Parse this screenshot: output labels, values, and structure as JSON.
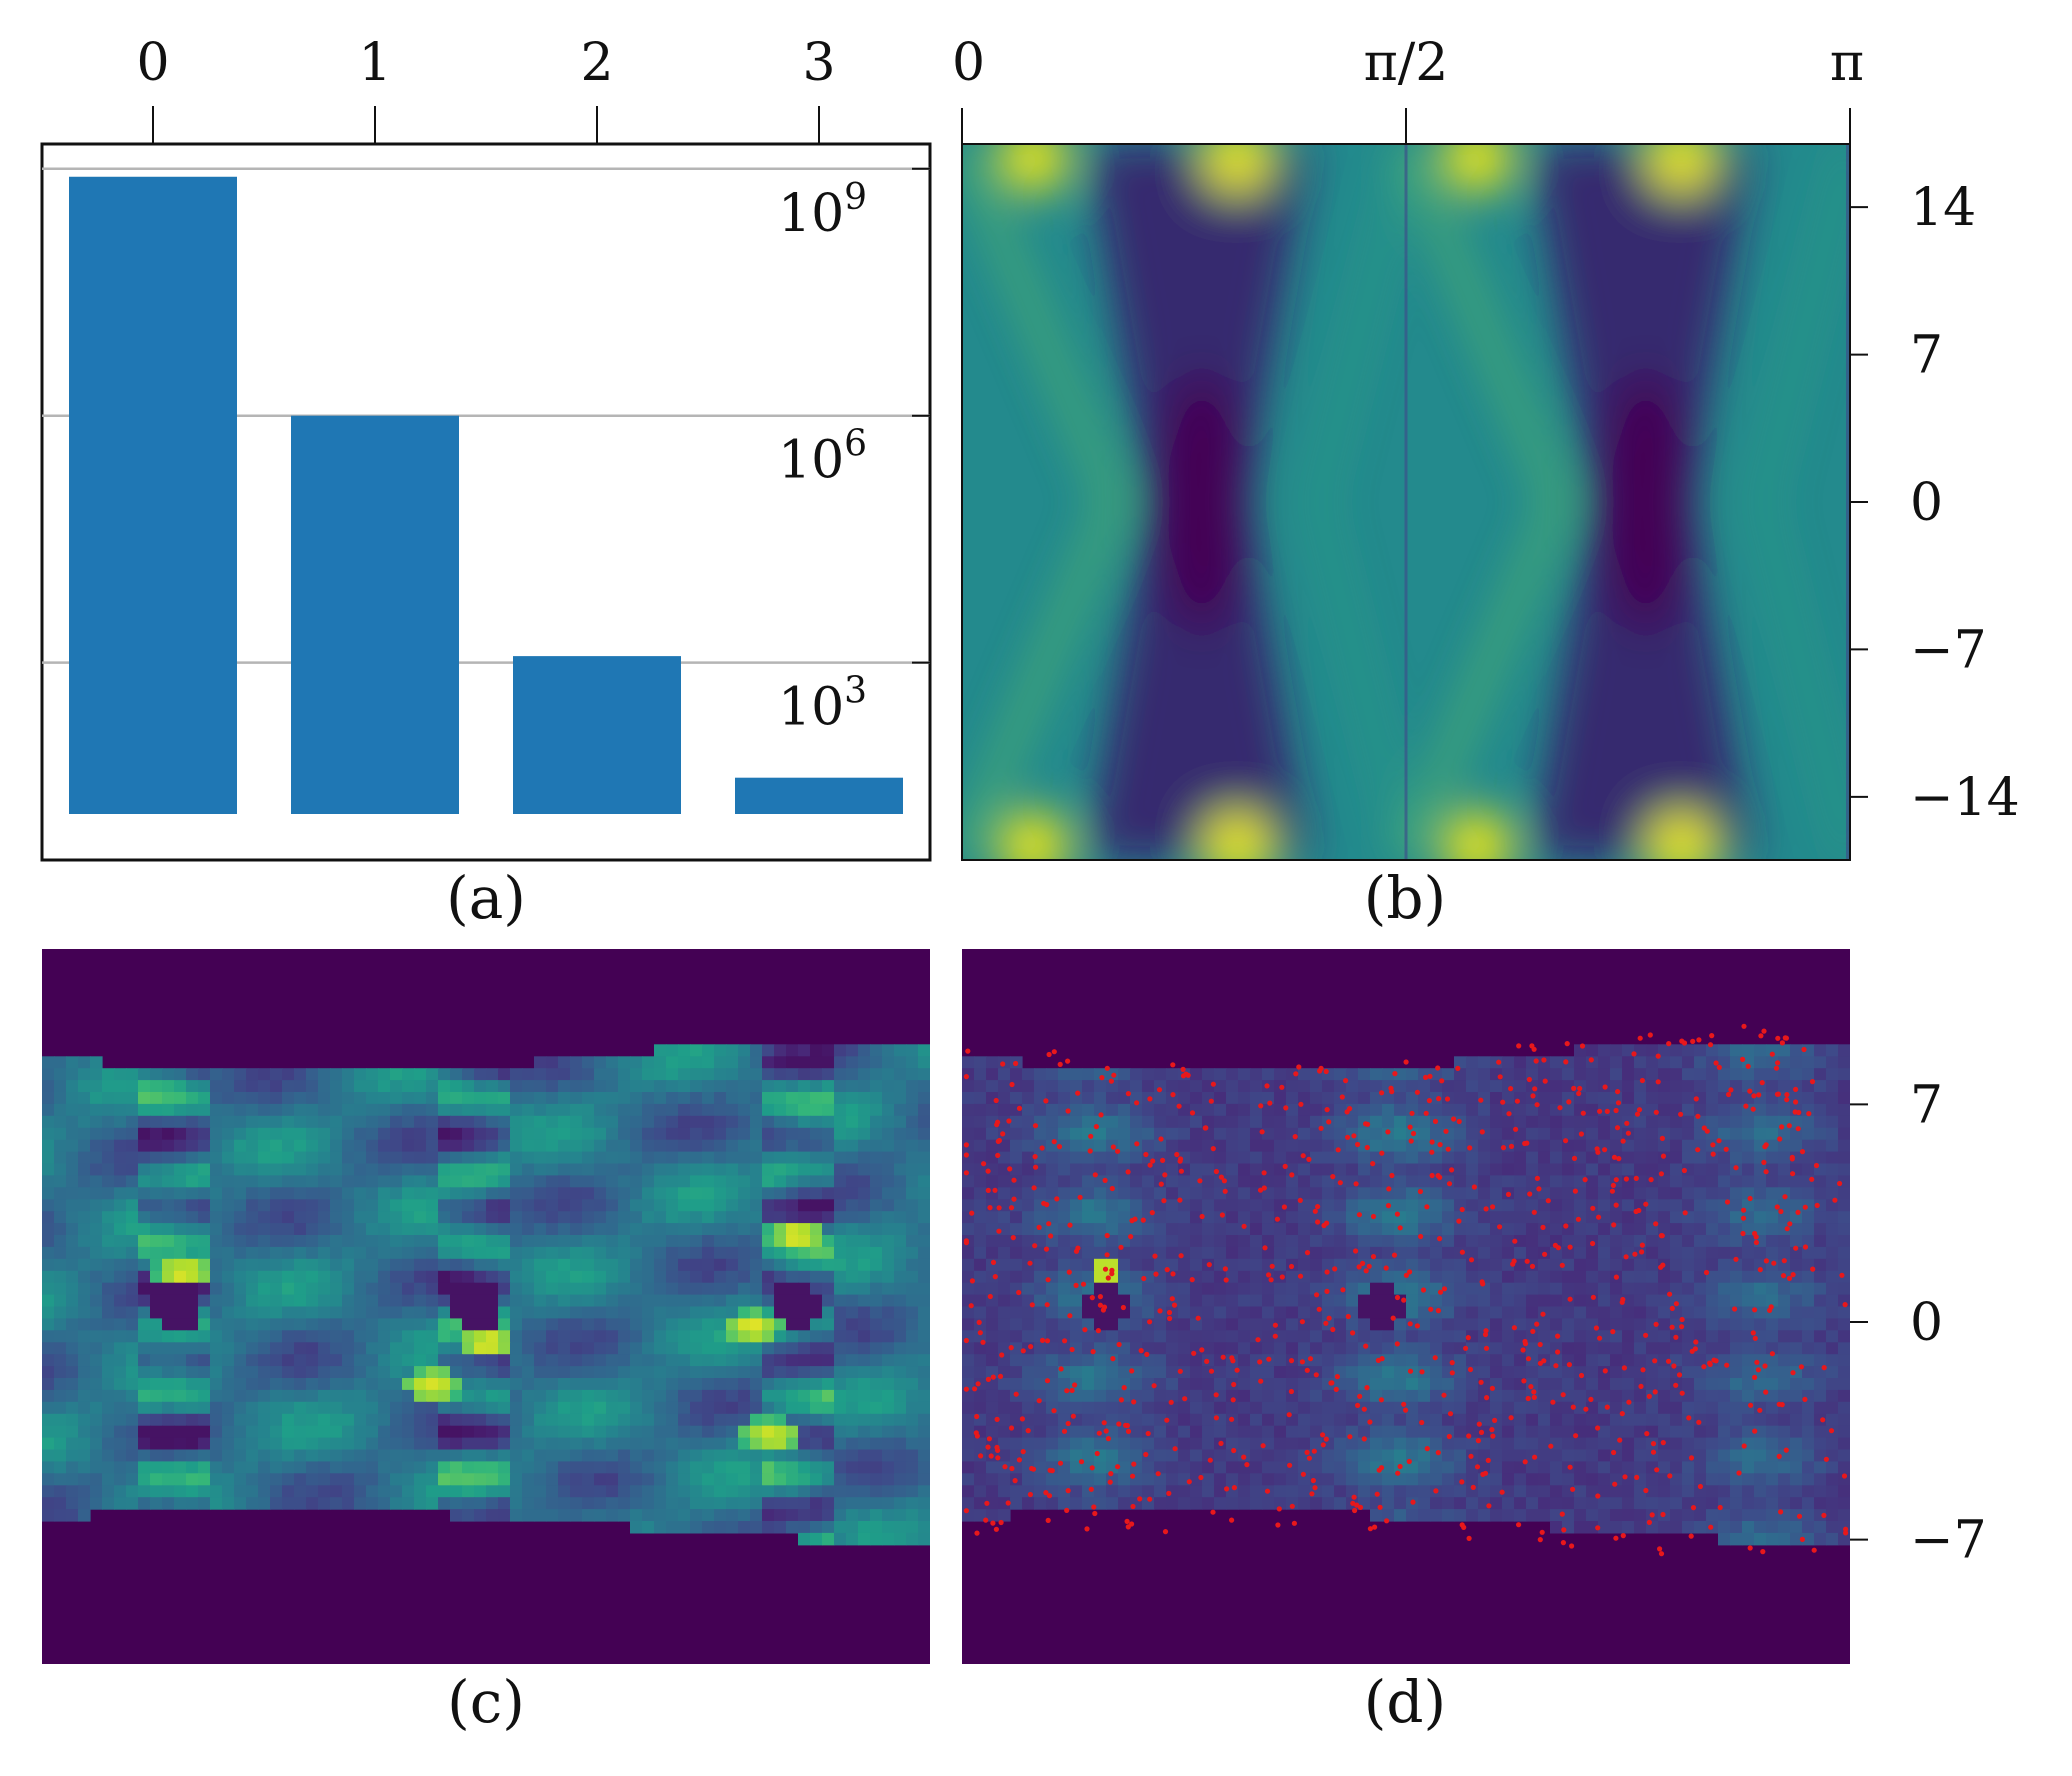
{
  "colors": {
    "bar": "#1f77b4",
    "grid": "#b5b5b5",
    "scatter": "#e8181b",
    "colormap": "viridis"
  },
  "chart_data": [
    {
      "panel": "a",
      "caption": "(a)",
      "type": "bar",
      "categories": [
        "0",
        "1",
        "2",
        "3"
      ],
      "values": [
        800000000,
        1000000,
        1200,
        40
      ],
      "yscale": "log",
      "ylim": [
        4,
        2000000000
      ],
      "yticks": [
        {
          "value": 1000000000,
          "base": "10",
          "exp": "9"
        },
        {
          "value": 1000000,
          "base": "10",
          "exp": "6"
        },
        {
          "value": 1000,
          "base": "10",
          "exp": "3"
        }
      ],
      "xaxis_position": "top",
      "ytick_labels_position": "inside-right",
      "grid": "horizontal",
      "title": "",
      "xlabel": "",
      "ylabel": ""
    },
    {
      "panel": "b",
      "caption": "(b)",
      "type": "heatmap",
      "colormap": "viridis",
      "xticks": [
        "0",
        "π/2",
        "π"
      ],
      "xtick_values": [
        0,
        1.5708,
        3.1416
      ],
      "xlim": [
        0,
        3.1416
      ],
      "yticks": [
        "14",
        "7",
        "0",
        "−7",
        "−14"
      ],
      "ytick_values": [
        14,
        7,
        0,
        -7,
        -14
      ],
      "ylim": [
        -17,
        17
      ],
      "xaxis_position": "top",
      "yaxis_position": "right",
      "title": "",
      "xlabel": "",
      "ylabel": ""
    },
    {
      "panel": "c",
      "caption": "(c)",
      "type": "heatmap",
      "colormap": "viridis",
      "axes": "none",
      "title": "",
      "xlabel": "",
      "ylabel": ""
    },
    {
      "panel": "d",
      "caption": "(d)",
      "type": "heatmap",
      "colormap": "viridis",
      "overlay": "scatter",
      "overlay_color": "#e8181b",
      "yticks": [
        "7",
        "0",
        "−7"
      ],
      "ytick_values": [
        7,
        0,
        -7
      ],
      "ylim": [
        -11,
        12
      ],
      "yaxis_position": "right",
      "title": "",
      "xlabel": "",
      "ylabel": ""
    }
  ]
}
